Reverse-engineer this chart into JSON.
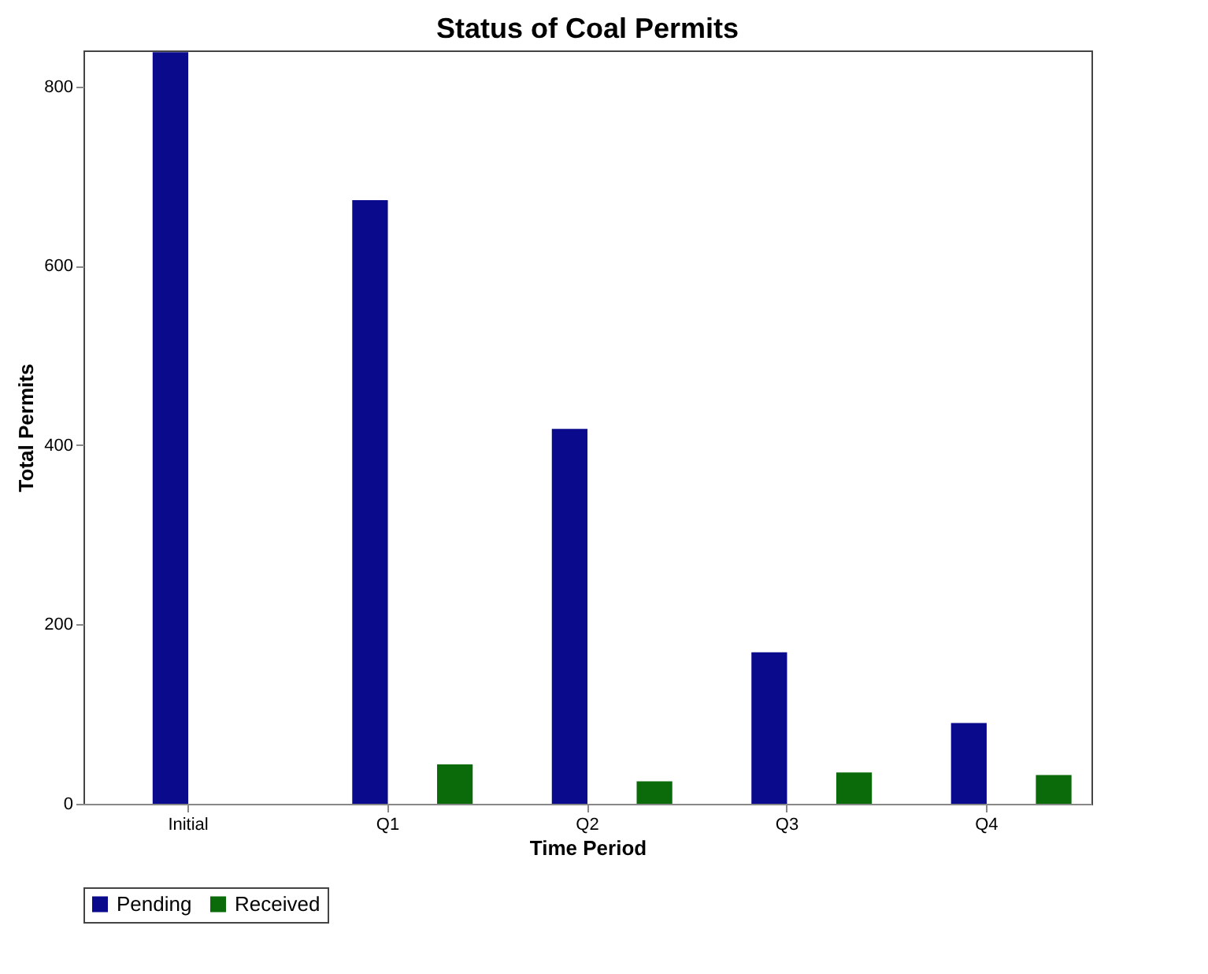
{
  "chart_data": {
    "type": "bar",
    "title": "Status of Coal Permits",
    "xlabel": "Time Period",
    "ylabel": "Total Permits",
    "categories": [
      "Initial",
      "Q1",
      "Q2",
      "Q3",
      "Q4"
    ],
    "series": [
      {
        "name": "Pending",
        "color": "#0a0a8c",
        "values": [
          838,
          673,
          418,
          169,
          90
        ]
      },
      {
        "name": "Received",
        "color": "#0b6b0b",
        "values": [
          null,
          44,
          25,
          35,
          32
        ]
      }
    ],
    "ylim": [
      0,
      840
    ],
    "yticks": [
      0,
      200,
      400,
      600,
      800
    ],
    "grid": false,
    "legend": "bottom"
  }
}
